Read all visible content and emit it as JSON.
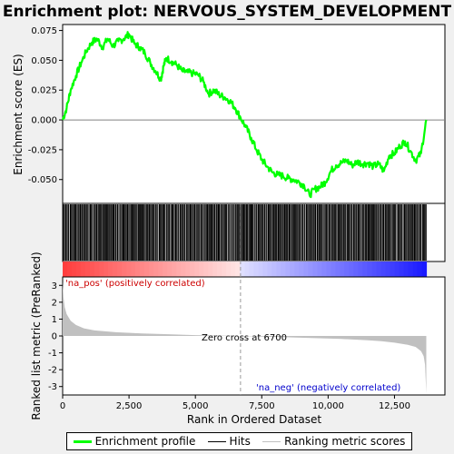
{
  "chart_data": {
    "type": "line",
    "title": "Enrichment plot: NERVOUS_SYSTEM_DEVELOPMENT",
    "es_axis": {
      "ylabel": "Enrichment score (ES)",
      "ylim": [
        -0.07,
        0.08
      ],
      "yticks": [
        0.075,
        0.05,
        0.025,
        0.0,
        -0.025,
        -0.05
      ],
      "ytick_labels": [
        "0.075",
        "0.050",
        "0.025",
        "0.000",
        "-0.025",
        "-0.050"
      ]
    },
    "series": [
      {
        "name": "Enrichment profile",
        "color": "#00ff00",
        "x": [
          0,
          150,
          300,
          500,
          700,
          900,
          1100,
          1300,
          1500,
          1700,
          1900,
          2100,
          2300,
          2500,
          2700,
          2900,
          3100,
          3300,
          3500,
          3700,
          3800,
          3900,
          4100,
          4300,
          4500,
          4700,
          4900,
          5100,
          5300,
          5500,
          5700,
          5900,
          6100,
          6300,
          6500,
          6700,
          6900,
          7100,
          7300,
          7500,
          7700,
          7900,
          8100,
          8300,
          8500,
          8700,
          8900,
          9100,
          9300,
          9500,
          9700,
          9900,
          10100,
          10300,
          10500,
          10700,
          10900,
          11100,
          11300,
          11500,
          11700,
          11900,
          12100,
          12300,
          12500,
          12700,
          12900,
          13100,
          13300,
          13500,
          13700
        ],
        "values": [
          0.0,
          0.01,
          0.025,
          0.037,
          0.048,
          0.058,
          0.065,
          0.068,
          0.061,
          0.068,
          0.062,
          0.066,
          0.068,
          0.072,
          0.064,
          0.061,
          0.056,
          0.048,
          0.041,
          0.034,
          0.045,
          0.052,
          0.049,
          0.046,
          0.041,
          0.04,
          0.039,
          0.038,
          0.032,
          0.022,
          0.025,
          0.021,
          0.019,
          0.016,
          0.01,
          0.002,
          -0.006,
          -0.015,
          -0.025,
          -0.033,
          -0.039,
          -0.044,
          -0.046,
          -0.047,
          -0.049,
          -0.05,
          -0.052,
          -0.055,
          -0.063,
          -0.058,
          -0.056,
          -0.052,
          -0.043,
          -0.038,
          -0.036,
          -0.034,
          -0.038,
          -0.035,
          -0.037,
          -0.036,
          -0.039,
          -0.037,
          -0.043,
          -0.03,
          -0.028,
          -0.022,
          -0.018,
          -0.026,
          -0.034,
          -0.028,
          0.0
        ]
      }
    ],
    "hits_legend": "Hits",
    "hits_ticks_approx": 470,
    "hits_range": [
      0,
      13700
    ],
    "rank_axis": {
      "xlabel": "Rank in Ordered Dataset",
      "xlim": [
        0,
        14400
      ],
      "xticks": [
        0,
        2500,
        5000,
        7500,
        10000,
        12500
      ],
      "xtick_labels": [
        "0",
        "2,500",
        "5,000",
        "7,500",
        "10,000",
        "12,500"
      ],
      "ylabel": "Ranked list metric (PreRanked)",
      "ylim": [
        -3.5,
        3.5
      ],
      "yticks": [
        3,
        2,
        1,
        0,
        -1,
        -2,
        -3
      ],
      "ytick_labels": [
        "3",
        "2",
        "1",
        "0",
        "-1",
        "-2",
        "-3"
      ]
    },
    "metric_curve": {
      "name": "Ranking metric scores",
      "color": "#c0c0c0",
      "x": [
        0,
        30,
        80,
        150,
        300,
        500,
        800,
        1200,
        2000,
        3000,
        4000,
        5000,
        6000,
        6700,
        7500,
        8500,
        9500,
        10500,
        11500,
        12000,
        12500,
        13000,
        13300,
        13500,
        13600,
        13650,
        13700
      ],
      "values": [
        3.2,
        2.3,
        1.7,
        1.3,
        0.9,
        0.65,
        0.45,
        0.33,
        0.22,
        0.15,
        0.1,
        0.05,
        0.02,
        0.0,
        -0.04,
        -0.08,
        -0.13,
        -0.18,
        -0.26,
        -0.31,
        -0.4,
        -0.52,
        -0.65,
        -0.9,
        -1.2,
        -1.7,
        -3.4
      ]
    },
    "zero_cross": 6700,
    "zero_cross_label": "Zero cross at 6700",
    "pos_label": "'na_pos' (positively correlated)",
    "neg_label": "'na_neg' (negatively correlated)",
    "colors": {
      "es": "#00ff00",
      "hits": "#000000",
      "pos": "#ff0000",
      "neg": "#0000ff"
    }
  },
  "legend": {
    "items": [
      {
        "label": "Enrichment profile",
        "color": "#00ff00"
      },
      {
        "label": "Hits",
        "color": "#000000"
      },
      {
        "label": "Ranking metric scores",
        "color": "#c0c0c0"
      }
    ]
  }
}
